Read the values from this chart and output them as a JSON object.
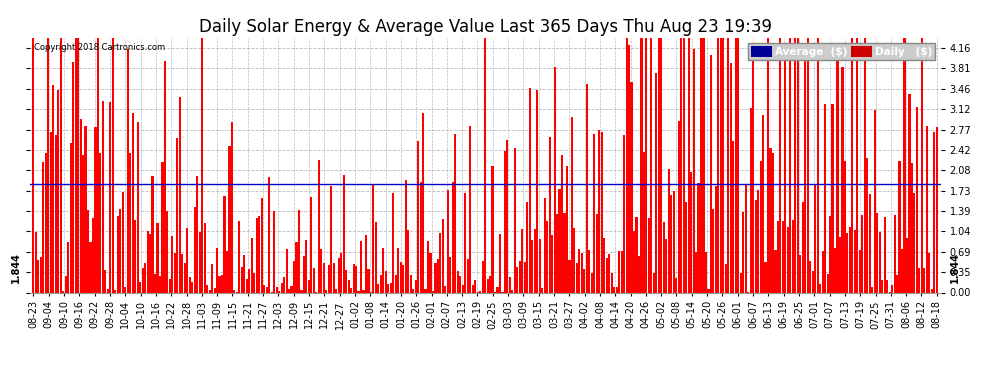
{
  "title": "Daily Solar Energy & Average Value Last 365 Days Thu Aug 23 19:39",
  "copyright": "Copyright 2018 Cartronics.com",
  "average_value": 1.844,
  "ylim": [
    0.0,
    4.335
  ],
  "yticks": [
    0.0,
    0.35,
    0.69,
    1.04,
    1.39,
    1.73,
    2.08,
    2.42,
    2.77,
    3.12,
    3.46,
    3.81,
    4.16
  ],
  "bar_color": "#ff0000",
  "average_line_color": "#0000cc",
  "background_color": "#ffffff",
  "plot_bg_color": "#ffffff",
  "grid_color": "#bbbbbb",
  "title_fontsize": 12,
  "tick_fontsize": 7,
  "legend_labels": [
    "Average  ($)",
    "Daily   ($)"
  ],
  "legend_colors": [
    "#000099",
    "#cc0000"
  ],
  "xtick_labels": [
    "08-23",
    "09-04",
    "09-10",
    "09-16",
    "09-22",
    "09-28",
    "10-04",
    "10-10",
    "10-16",
    "10-22",
    "10-28",
    "11-03",
    "11-09",
    "11-15",
    "11-21",
    "11-27",
    "12-03",
    "12-09",
    "12-15",
    "12-21",
    "12-27",
    "01-02",
    "01-08",
    "01-14",
    "01-20",
    "01-26",
    "02-01",
    "02-07",
    "02-13",
    "02-19",
    "02-25",
    "03-03",
    "03-09",
    "03-15",
    "03-21",
    "03-27",
    "04-02",
    "04-08",
    "04-14",
    "04-20",
    "04-26",
    "05-02",
    "05-08",
    "05-14",
    "05-20",
    "05-26",
    "06-01",
    "06-07",
    "06-13",
    "06-19",
    "06-25",
    "07-01",
    "07-07",
    "07-13",
    "07-19",
    "07-25",
    "07-31",
    "08-06",
    "08-12",
    "08-18"
  ],
  "num_bars": 365,
  "seed": 12345
}
